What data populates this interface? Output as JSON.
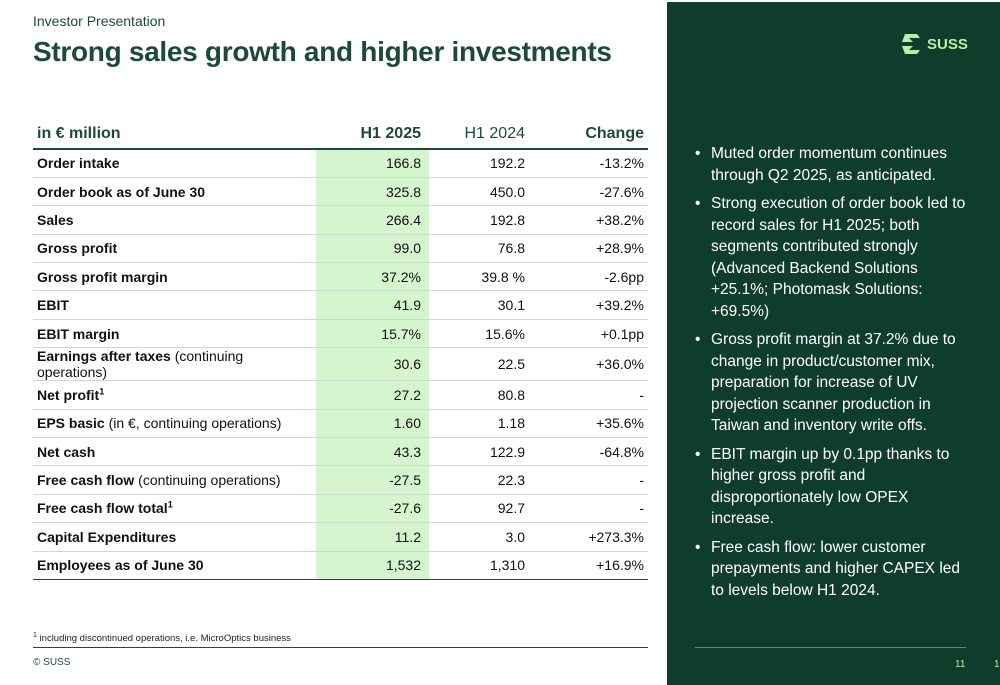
{
  "header": {
    "eyebrow": "Investor Presentation",
    "title": "Strong sales growth and higher investments"
  },
  "table": {
    "columns": [
      "in € million",
      "H1 2025",
      "H1 2024",
      "Change"
    ],
    "rows": [
      {
        "label": "Order intake",
        "note": "",
        "sup": "",
        "h1_2025": "166.8",
        "h1_2024": "192.2",
        "change": "-13.2%"
      },
      {
        "label": "Order book as of June 30",
        "note": "",
        "sup": "",
        "h1_2025": "325.8",
        "h1_2024": "450.0",
        "change": "-27.6%"
      },
      {
        "label": "Sales",
        "note": "",
        "sup": "",
        "h1_2025": "266.4",
        "h1_2024": "192.8",
        "change": "+38.2%"
      },
      {
        "label": "Gross profit",
        "note": "",
        "sup": "",
        "h1_2025": "99.0",
        "h1_2024": "76.8",
        "change": "+28.9%"
      },
      {
        "label": "Gross profit margin",
        "note": "",
        "sup": "",
        "h1_2025": "37.2%",
        "h1_2024": "39.8 %",
        "change": "-2.6pp"
      },
      {
        "label": "EBIT",
        "note": "",
        "sup": "",
        "h1_2025": "41.9",
        "h1_2024": "30.1",
        "change": "+39.2%"
      },
      {
        "label": "EBIT margin",
        "note": "",
        "sup": "",
        "h1_2025": "15.7%",
        "h1_2024": "15.6%",
        "change": "+0.1pp"
      },
      {
        "label": "Earnings after taxes",
        "note": " (continuing operations)",
        "sup": "",
        "h1_2025": "30.6",
        "h1_2024": "22.5",
        "change": "+36.0%"
      },
      {
        "label": "Net profit",
        "note": "",
        "sup": "1",
        "h1_2025": "27.2",
        "h1_2024": "80.8",
        "change": "-"
      },
      {
        "label": "EPS basic",
        "note": " (in €, continuing operations)",
        "sup": "",
        "h1_2025": "1.60",
        "h1_2024": "1.18",
        "change": "+35.6%"
      },
      {
        "label": "Net cash",
        "note": "",
        "sup": "",
        "h1_2025": "43.3",
        "h1_2024": "122.9",
        "change": "-64.8%"
      },
      {
        "label": "Free cash flow",
        "note": " (continuing operations)",
        "sup": "",
        "h1_2025": "-27.5",
        "h1_2024": "22.3",
        "change": "-"
      },
      {
        "label": "Free cash flow total",
        "note": "",
        "sup": "1",
        "h1_2025": "-27.6",
        "h1_2024": "92.7",
        "change": "-"
      },
      {
        "label": "Capital Expenditures",
        "note": "",
        "sup": "",
        "h1_2025": "11.2",
        "h1_2024": "3.0",
        "change": "+273.3%"
      },
      {
        "label": "Employees as of June 30",
        "note": "",
        "sup": "",
        "h1_2025": "1,532",
        "h1_2024": "1,310",
        "change": "+16.9%"
      }
    ]
  },
  "footnote": {
    "marker": "1",
    "text": " including discontinued operations, i.e. MicroOptics business"
  },
  "footer": {
    "copyright": "© SUSS",
    "page_number": "11",
    "edge_number": "1"
  },
  "panel": {
    "logo_text": "SUSS",
    "bullets": [
      "Muted order momentum continues through Q2 2025, as anticipated.",
      "Strong execution of order book led to record sales for H1 2025; both segments contributed strongly (Advanced Backend Solutions +25.1%; Photomask Solutions: +69.5%)",
      "Gross profit margin at 37.2% due to change in product/customer mix, preparation for increase of UV projection scanner production in Taiwan and inventory write offs.",
      "EBIT margin up by 0.1pp thanks to higher gross profit and disproportionately low OPEX increase.",
      "Free cash flow: lower customer prepayments and higher CAPEX led to levels below H1 2024."
    ]
  },
  "colors": {
    "brand_dark_green": "#0f3d2c",
    "title_green": "#1d4a37",
    "highlight_column": "#d5f5cf",
    "logo_green": "#b9f0a5"
  }
}
